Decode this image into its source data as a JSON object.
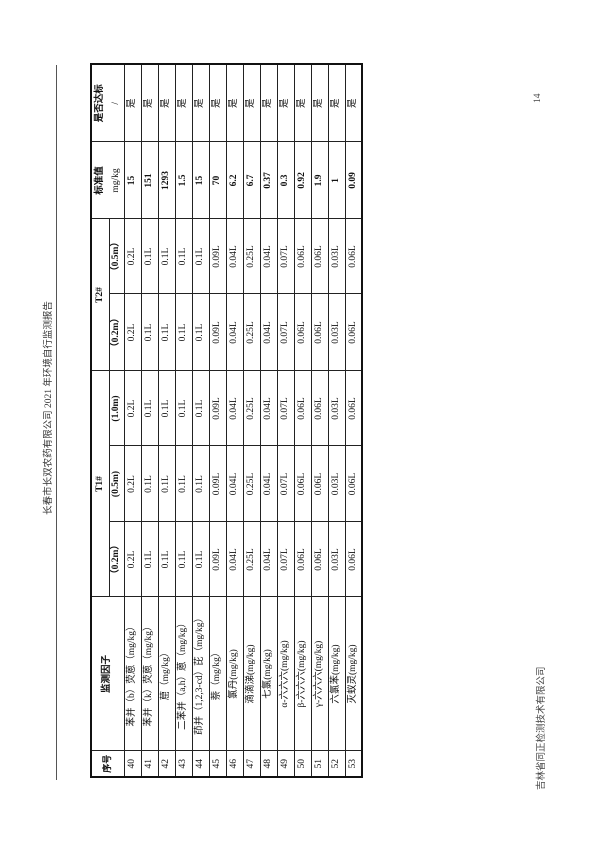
{
  "header_text": "长春市长双农药有限公司 2021 年环境自行监测报告",
  "footer_text": "吉林省同正检测技术有限公司",
  "page_number": "14",
  "table": {
    "headers": {
      "no": "序号",
      "factor": "监测因子",
      "t1": "T1#",
      "t2": "T2#",
      "standard": "标准值",
      "compliant": "是否达标",
      "t1_depths": [
        "（0.2m）",
        "(0.5m)",
        "(1.0m)"
      ],
      "t2_depths": [
        "（0.2m）",
        "（0.5m）"
      ],
      "standard_unit": "mg/kg",
      "compliant_sub": "/"
    },
    "rows": [
      {
        "no": "40",
        "factor": "苯并（b）荧蒽（mg/kg）",
        "t1a": "0.2L",
        "t1b": "0.2L",
        "t1c": "0.2L",
        "t2a": "0.2L",
        "t2b": "0.2L",
        "std": "15",
        "ok": "是"
      },
      {
        "no": "41",
        "factor": "苯并（k）荧蒽（mg/kg）",
        "t1a": "0.1L",
        "t1b": "0.1L",
        "t1c": "0.1L",
        "t2a": "0.1L",
        "t2b": "0.1L",
        "std": "151",
        "ok": "是"
      },
      {
        "no": "42",
        "factor": "䓛（mg/kg）",
        "t1a": "0.1L",
        "t1b": "0.1L",
        "t1c": "0.1L",
        "t2a": "0.1L",
        "t2b": "0.1L",
        "std": "1293",
        "ok": "是"
      },
      {
        "no": "43",
        "factor": "二苯并（a,h）蒽（mg/kg）",
        "t1a": "0.1L",
        "t1b": "0.1L",
        "t1c": "0.1L",
        "t2a": "0.1L",
        "t2b": "0.1L",
        "std": "1.5",
        "ok": "是"
      },
      {
        "no": "44",
        "factor": "茚并（1,2,3-cd）芘（mg/kg）",
        "t1a": "0.1L",
        "t1b": "0.1L",
        "t1c": "0.1L",
        "t2a": "0.1L",
        "t2b": "0.1L",
        "std": "15",
        "ok": "是"
      },
      {
        "no": "45",
        "factor": "萘（mg/kg）",
        "t1a": "0.09L",
        "t1b": "0.09L",
        "t1c": "0.09L",
        "t2a": "0.09L",
        "t2b": "0.09L",
        "std": "70",
        "ok": "是"
      },
      {
        "no": "46",
        "factor": "氯丹(mg/kg)",
        "t1a": "0.04L",
        "t1b": "0.04L",
        "t1c": "0.04L",
        "t2a": "0.04L",
        "t2b": "0.04L",
        "std": "6.2",
        "ok": "是"
      },
      {
        "no": "47",
        "factor": "滴滴涕(mg/kg)",
        "t1a": "0.25L",
        "t1b": "0.25L",
        "t1c": "0.25L",
        "t2a": "0.25L",
        "t2b": "0.25L",
        "std": "6.7",
        "ok": "是"
      },
      {
        "no": "48",
        "factor": "七氯(mg/kg)",
        "t1a": "0.04L",
        "t1b": "0.04L",
        "t1c": "0.04L",
        "t2a": "0.04L",
        "t2b": "0.04L",
        "std": "0.37",
        "ok": "是"
      },
      {
        "no": "49",
        "factor": "α-六六六(mg/kg)",
        "t1a": "0.07L",
        "t1b": "0.07L",
        "t1c": "0.07L",
        "t2a": "0.07L",
        "t2b": "0.07L",
        "std": "0.3",
        "ok": "是"
      },
      {
        "no": "50",
        "factor": "β-六六六(mg/kg)",
        "t1a": "0.06L",
        "t1b": "0.06L",
        "t1c": "0.06L",
        "t2a": "0.06L",
        "t2b": "0.06L",
        "std": "0.92",
        "ok": "是"
      },
      {
        "no": "51",
        "factor": "γ-六六六(mg/kg)",
        "t1a": "0.06L",
        "t1b": "0.06L",
        "t1c": "0.06L",
        "t2a": "0.06L",
        "t2b": "0.06L",
        "std": "1.9",
        "ok": "是"
      },
      {
        "no": "52",
        "factor": "六氯苯(mg/kg)",
        "t1a": "0.03L",
        "t1b": "0.03L",
        "t1c": "0.03L",
        "t2a": "0.03L",
        "t2b": "0.03L",
        "std": "1",
        "ok": "是"
      },
      {
        "no": "53",
        "factor": "灭蚁灵(mg/kg)",
        "t1a": "0.06L",
        "t1b": "0.06L",
        "t1c": "0.06L",
        "t2a": "0.06L",
        "t2b": "0.06L",
        "std": "0.09",
        "ok": "是"
      }
    ]
  }
}
